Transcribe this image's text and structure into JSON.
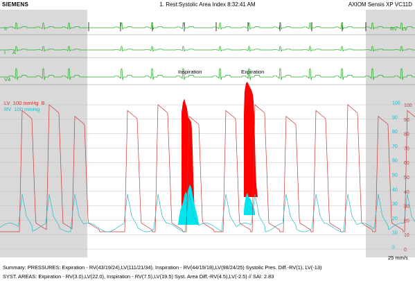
{
  "header": {
    "brand": "SIEMENS",
    "title": "1. Rest:Systolic Area Index 8:32:41 AM",
    "system": "AXIOM Sensis XP VC11D"
  },
  "leads": {
    "lead_ii": "II",
    "lead_i": "I",
    "lead_a": "A",
    "lead_v4": "V4",
    "rv_lv_tag": "RV   LV"
  },
  "pressure_labels": {
    "lv": "LV  100 mmHg  B",
    "rv": "RV  100 mmHg"
  },
  "annotations": {
    "inspiration": "Inspiration",
    "expiration": "Expiration",
    "speed": "25 mm/s"
  },
  "scales": {
    "lv_ticks": [
      "100",
      "90",
      "80",
      "70",
      "60",
      "50",
      "40",
      "30",
      "20",
      "10",
      "0"
    ],
    "rv_ticks": [
      "100",
      "90",
      "80",
      "70",
      "60",
      "50",
      "40",
      "30",
      "20",
      "10",
      "0"
    ]
  },
  "colors": {
    "ecg": "#22aa22",
    "lv": "#cc3333",
    "rv": "#22b8c8",
    "lv_fill": "#ff0000",
    "rv_fill": "#00e5ee",
    "gray_band": "#d9d9d9",
    "grid": "#c0c0c0",
    "orange_marker": "#e08a2c"
  },
  "summary": {
    "line1": "Summary: PRESSURES: Expiration - RV(43/19/24),LV(111/21/34), Inspiration - RV(44/19/18),LV(98/24/25) Systolic Pres. Diff.-RV(1), LV(-13)",
    "line2": "SYST. AREAS: Expiration - RV(3.0),LV(22.0), Inspiration - RV(7.5),LV(19.5) Syst. Area Diff.-RV(4.5),LV(-2.5) // SAI: 2.83"
  }
}
